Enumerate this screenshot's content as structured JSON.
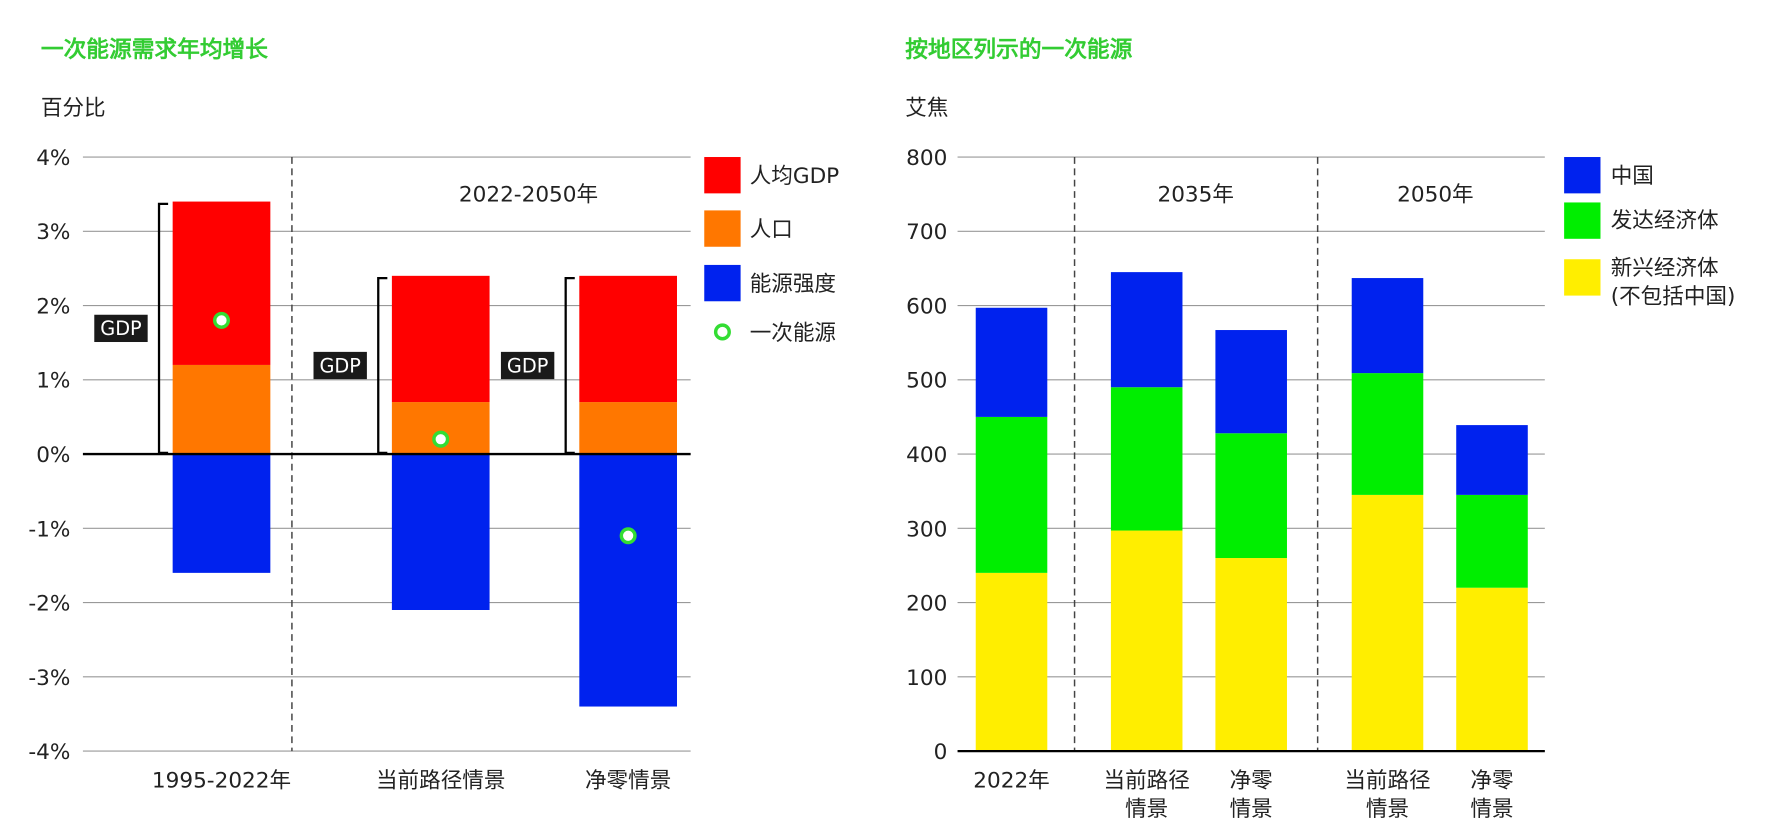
{
  "chart_data": [
    {
      "type": "bar",
      "stacked": true,
      "title": "一次能源需求年均增长",
      "ylabel": "百分比",
      "ylim": [
        -4,
        4
      ],
      "yticks": [
        "4%",
        "3%",
        "2%",
        "1%",
        "0%",
        "-1%",
        "-2%",
        "-3%",
        "-4%"
      ],
      "yticks_values": [
        4,
        3,
        2,
        1,
        0,
        -1,
        -2,
        -3,
        -4
      ],
      "group_label": "2022-2050年",
      "bracket_label": "GDP",
      "categories": [
        "1995-2022年",
        "当前路径情景",
        "净零情景"
      ],
      "series": [
        {
          "name": "人口",
          "color": "#ff7700",
          "values": [
            1.2,
            0.7,
            0.7
          ]
        },
        {
          "name": "人均GDP",
          "color": "#ff0000",
          "values": [
            2.2,
            1.7,
            1.7
          ]
        },
        {
          "name": "能源强度",
          "color": "#0022ee",
          "values": [
            -1.6,
            -2.1,
            -3.4
          ]
        }
      ],
      "markers": {
        "name": "一次能源",
        "color": "#33dd33",
        "values": [
          1.8,
          0.2,
          -1.1
        ]
      },
      "legend": [
        "人均GDP",
        "人口",
        "能源强度",
        "一次能源"
      ],
      "legend_placement": "right",
      "grid": true
    },
    {
      "type": "bar",
      "stacked": true,
      "title": "按地区列示的一次能源",
      "ylabel": "艾焦",
      "ylim": [
        0,
        800
      ],
      "yticks": [
        "800",
        "700",
        "600",
        "500",
        "400",
        "300",
        "200",
        "100",
        "0"
      ],
      "yticks_values": [
        800,
        700,
        600,
        500,
        400,
        300,
        200,
        100,
        0
      ],
      "group_labels": [
        "2035年",
        "2050年"
      ],
      "categories": [
        [
          "2022年"
        ],
        [
          "当前路径",
          "情景"
        ],
        [
          "净零",
          "情景"
        ],
        [
          "当前路径",
          "情景"
        ],
        [
          "净零",
          "情景"
        ]
      ],
      "series": [
        {
          "name": "新兴经济体",
          "name2": "(不包括中国)",
          "color": "#ffee00",
          "values": [
            240,
            297,
            260,
            345,
            220
          ]
        },
        {
          "name": "发达经济体",
          "color": "#00ee00",
          "values": [
            210,
            193,
            168,
            164,
            125
          ]
        },
        {
          "name": "中国",
          "color": "#0022ee",
          "values": [
            147,
            155,
            139,
            128,
            94
          ]
        }
      ],
      "legend": [
        "中国",
        "发达经济体",
        "新兴经济体",
        "(不包括中国)"
      ],
      "legend_placement": "right",
      "grid": true
    }
  ]
}
